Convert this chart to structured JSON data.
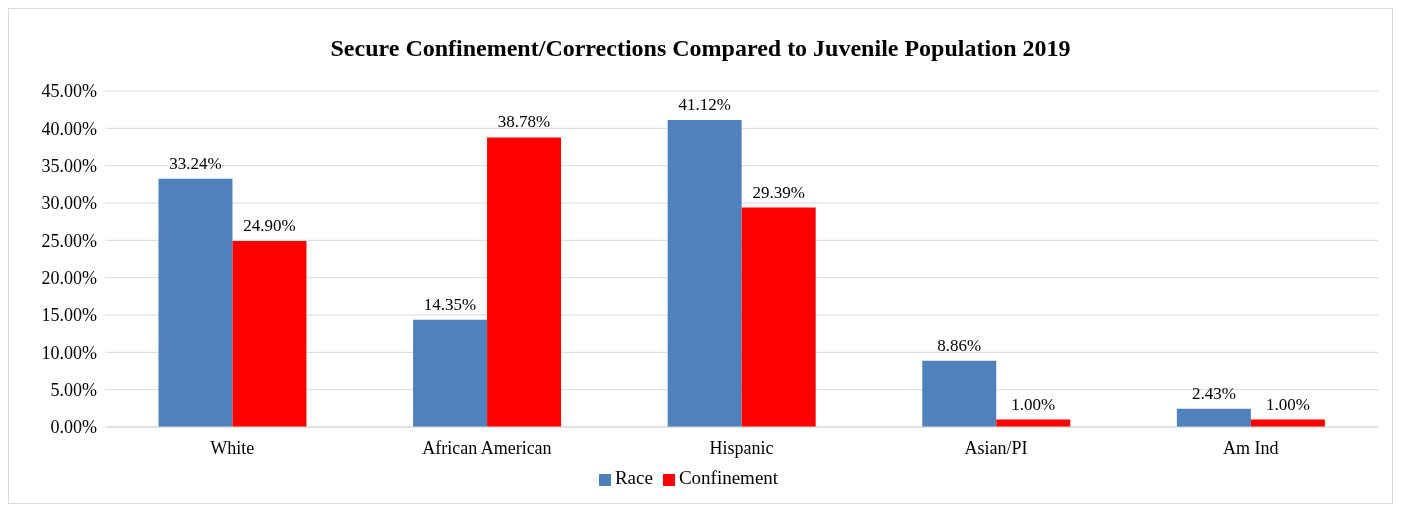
{
  "chart_data": {
    "type": "bar",
    "title": "Secure Confinement/Corrections Compared to Juvenile Population 2019",
    "categories": [
      "White",
      "African American",
      "Hispanic",
      "Asian/PI",
      "Am Ind"
    ],
    "series": [
      {
        "name": "Race",
        "color": "#4f81bd",
        "values": [
          33.24,
          14.35,
          41.12,
          8.86,
          2.43
        ],
        "value_labels": [
          "33.24%",
          "14.35%",
          "41.12%",
          "8.86%",
          "2.43%"
        ]
      },
      {
        "name": "Confinement",
        "color": "#ff0000",
        "values": [
          24.9,
          38.78,
          29.39,
          1.0,
          1.0
        ],
        "value_labels": [
          "24.90%",
          "38.78%",
          "29.39%",
          "1.00%",
          "1.00%"
        ]
      }
    ],
    "ylim": [
      0,
      45
    ],
    "yticks": [
      {
        "value": 0,
        "label": "0.00%"
      },
      {
        "value": 5,
        "label": "5.00%"
      },
      {
        "value": 10,
        "label": "10.00%"
      },
      {
        "value": 15,
        "label": "15.00%"
      },
      {
        "value": 20,
        "label": "20.00%"
      },
      {
        "value": 25,
        "label": "25.00%"
      },
      {
        "value": 30,
        "label": "30.00%"
      },
      {
        "value": 35,
        "label": "35.00%"
      },
      {
        "value": 40,
        "label": "40.00%"
      },
      {
        "value": 45,
        "label": "45.00%"
      }
    ],
    "grid": "y",
    "legend": "bottom"
  }
}
